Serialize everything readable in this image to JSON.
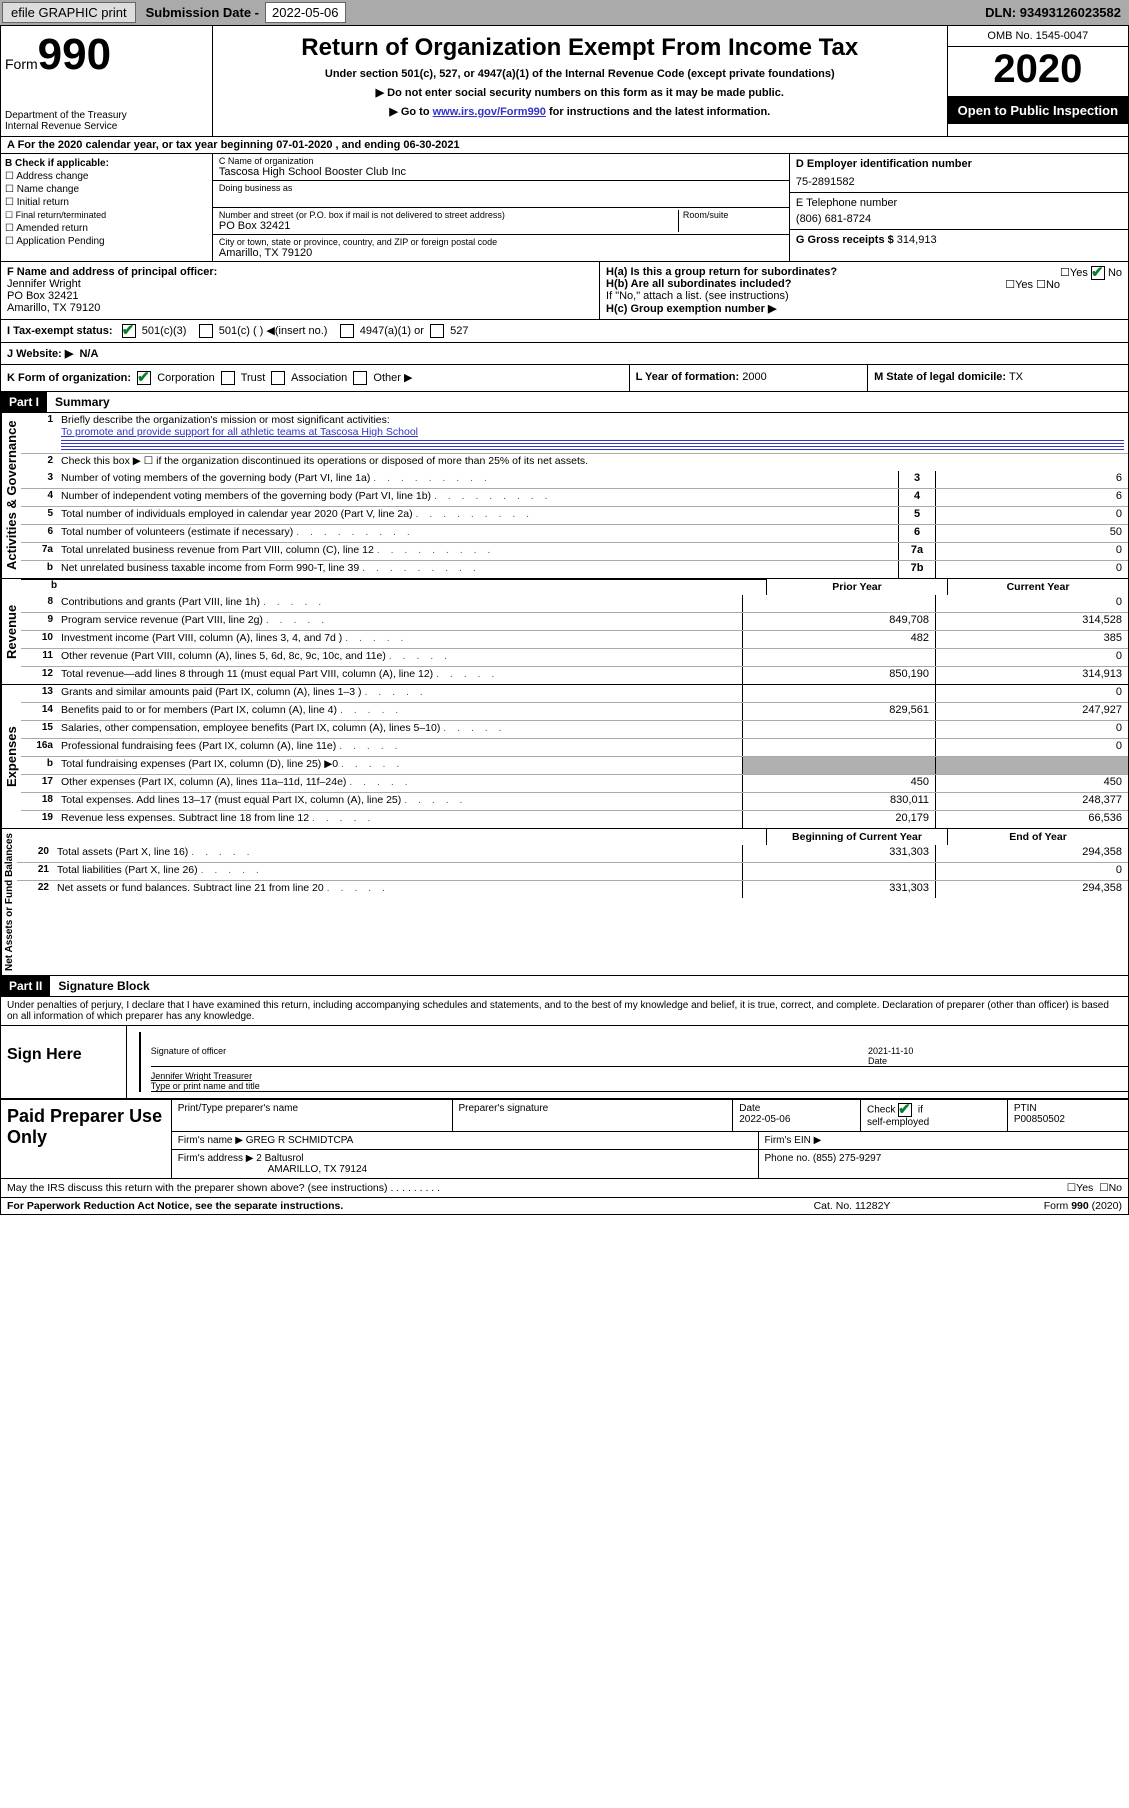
{
  "topbar": {
    "efile": "efile GRAPHIC print",
    "sub_label": "Submission Date -",
    "sub_date": "2022-05-06",
    "dln_label": "DLN:",
    "dln": "93493126023582"
  },
  "header": {
    "form_word": "Form",
    "form_num": "990",
    "dept1": "Department of the Treasury",
    "dept2": "Internal Revenue Service",
    "title": "Return of Organization Exempt From Income Tax",
    "sub1": "Under section 501(c), 527, or 4947(a)(1) of the Internal Revenue Code (except private foundations)",
    "sub2": "▶ Do not enter social security numbers on this form as it may be made public.",
    "sub3_pre": "▶ Go to ",
    "sub3_link": "www.irs.gov/Form990",
    "sub3_post": " for instructions and the latest information.",
    "omb": "OMB No. 1545-0047",
    "year": "2020",
    "open": "Open to Public Inspection"
  },
  "rowA": "A   For the 2020 calendar year, or tax year beginning 07-01-2020     , and ending 06-30-2021",
  "blockB": {
    "hdr": "B Check if applicable:",
    "items": [
      "Address change",
      "Name change",
      "Initial return",
      "Final return/terminated",
      "Amended return",
      "Application Pending"
    ]
  },
  "blockC": {
    "name_lbl": "C Name of organization",
    "name": "Tascosa High School Booster Club Inc",
    "dba_lbl": "Doing business as",
    "dba": "",
    "addr_lbl": "Number and street (or P.O. box if mail is not delivered to street address)",
    "room_lbl": "Room/suite",
    "addr": "PO Box 32421",
    "city_lbl": "City or town, state or province, country, and ZIP or foreign postal code",
    "city": "Amarillo, TX  79120"
  },
  "blockD": {
    "ein_lbl": "D Employer identification number",
    "ein": "75-2891582",
    "tel_lbl": "E Telephone number",
    "tel": "(806) 681-8724",
    "gross_lbl": "G Gross receipts $",
    "gross": "314,913"
  },
  "blockF": {
    "lbl": "F  Name and address of principal officer:",
    "name": "Jennifer Wright",
    "addr1": "PO Box 32421",
    "addr2": "Amarillo, TX  79120"
  },
  "blockH": {
    "ha": "H(a)  Is this a group return for subordinates?",
    "hb": "H(b)  Are all subordinates included?",
    "hb_note": "If \"No,\" attach a list. (see instructions)",
    "hc": "H(c)  Group exemption number ▶",
    "yes": "Yes",
    "no": "No"
  },
  "tax": {
    "lbl": "I   Tax-exempt status:",
    "o1": "501(c)(3)",
    "o2": "501(c) (  ) ◀(insert no.)",
    "o3": "4947(a)(1) or",
    "o4": "527"
  },
  "web": {
    "lbl": "J   Website: ▶",
    "val": "N/A"
  },
  "rowK": {
    "lbl": "K Form of organization:",
    "o1": "Corporation",
    "o2": "Trust",
    "o3": "Association",
    "o4": "Other ▶",
    "L_lbl": "L Year of formation:",
    "L_val": "2000",
    "M_lbl": "M State of legal domicile:",
    "M_val": "TX"
  },
  "parts": {
    "p1": "Part I",
    "p1t": "Summary",
    "p2": "Part II",
    "p2t": "Signature Block"
  },
  "summary": {
    "q1": "Briefly describe the organization's mission or most significant activities:",
    "mission": "To promote and provide support for all athletic teams at Tascosa High School",
    "q2": "Check this box ▶ ☐  if the organization discontinued its operations or disposed of more than 25% of its net assets.",
    "lines_top": [
      {
        "n": "3",
        "t": "Number of voting members of the governing body (Part VI, line 1a)",
        "box": "3",
        "v": "6"
      },
      {
        "n": "4",
        "t": "Number of independent voting members of the governing body (Part VI, line 1b)",
        "box": "4",
        "v": "6"
      },
      {
        "n": "5",
        "t": "Total number of individuals employed in calendar year 2020 (Part V, line 2a)",
        "box": "5",
        "v": "0"
      },
      {
        "n": "6",
        "t": "Total number of volunteers (estimate if necessary)",
        "box": "6",
        "v": "50"
      },
      {
        "n": "7a",
        "t": "Total unrelated business revenue from Part VIII, column (C), line 12",
        "box": "7a",
        "v": "0"
      },
      {
        "n": "b",
        "t": "Net unrelated business taxable income from Form 990-T, line 39",
        "box": "7b",
        "v": "0"
      }
    ],
    "col_prior": "Prior Year",
    "col_curr": "Current Year",
    "revenue": [
      {
        "n": "8",
        "t": "Contributions and grants (Part VIII, line 1h)",
        "p": "",
        "c": "0"
      },
      {
        "n": "9",
        "t": "Program service revenue (Part VIII, line 2g)",
        "p": "849,708",
        "c": "314,528"
      },
      {
        "n": "10",
        "t": "Investment income (Part VIII, column (A), lines 3, 4, and 7d )",
        "p": "482",
        "c": "385"
      },
      {
        "n": "11",
        "t": "Other revenue (Part VIII, column (A), lines 5, 6d, 8c, 9c, 10c, and 11e)",
        "p": "",
        "c": "0"
      },
      {
        "n": "12",
        "t": "Total revenue—add lines 8 through 11 (must equal Part VIII, column (A), line 12)",
        "p": "850,190",
        "c": "314,913"
      }
    ],
    "expenses": [
      {
        "n": "13",
        "t": "Grants and similar amounts paid (Part IX, column (A), lines 1–3 )",
        "p": "",
        "c": "0"
      },
      {
        "n": "14",
        "t": "Benefits paid to or for members (Part IX, column (A), line 4)",
        "p": "829,561",
        "c": "247,927"
      },
      {
        "n": "15",
        "t": "Salaries, other compensation, employee benefits (Part IX, column (A), lines 5–10)",
        "p": "",
        "c": "0"
      },
      {
        "n": "16a",
        "t": "Professional fundraising fees (Part IX, column (A), line 11e)",
        "p": "",
        "c": "0"
      },
      {
        "n": "b",
        "t": "Total fundraising expenses (Part IX, column (D), line 25) ▶0",
        "p": "SHADE",
        "c": "SHADE"
      },
      {
        "n": "17",
        "t": "Other expenses (Part IX, column (A), lines 11a–11d, 11f–24e)",
        "p": "450",
        "c": "450"
      },
      {
        "n": "18",
        "t": "Total expenses. Add lines 13–17 (must equal Part IX, column (A), line 25)",
        "p": "830,011",
        "c": "248,377"
      },
      {
        "n": "19",
        "t": "Revenue less expenses. Subtract line 18 from line 12",
        "p": "20,179",
        "c": "66,536"
      }
    ],
    "col_begin": "Beginning of Current Year",
    "col_end": "End of Year",
    "netassets": [
      {
        "n": "20",
        "t": "Total assets (Part X, line 16)",
        "p": "331,303",
        "c": "294,358"
      },
      {
        "n": "21",
        "t": "Total liabilities (Part X, line 26)",
        "p": "",
        "c": "0"
      },
      {
        "n": "22",
        "t": "Net assets or fund balances. Subtract line 21 from line 20",
        "p": "331,303",
        "c": "294,358"
      }
    ]
  },
  "vlabels": {
    "gov": "Activities & Governance",
    "rev": "Revenue",
    "exp": "Expenses",
    "net": "Net Assets or Fund Balances"
  },
  "penalties": "Under penalties of perjury, I declare that I have examined this return, including accompanying schedules and statements, and to the best of my knowledge and belief, it is true, correct, and complete. Declaration of preparer (other than officer) is based on all information of which preparer has any knowledge.",
  "sign": {
    "hdr": "Sign Here",
    "sig_lbl": "Signature of officer",
    "date_lbl": "Date",
    "date": "2021-11-10",
    "name": "Jennifer Wright Treasurer",
    "name_lbl": "Type or print name and title"
  },
  "paid": {
    "hdr": "Paid Preparer Use Only",
    "r1": {
      "c1_lbl": "Print/Type preparer's name",
      "c1": "",
      "c2_lbl": "Preparer's signature",
      "c2": "",
      "c3_lbl": "Date",
      "c3": "2022-05-06",
      "c4_lbl": "Check ☑ if self-employed",
      "c5_lbl": "PTIN",
      "c5": "P00850502"
    },
    "r2": {
      "lbl": "Firm's name    ▶",
      "val": "GREG R SCHMIDTCPA",
      "ein_lbl": "Firm's EIN ▶",
      "ein": ""
    },
    "r3": {
      "lbl": "Firm's address ▶",
      "val1": "2 Baltusrol",
      "val2": "AMARILLO, TX  79124",
      "ph_lbl": "Phone no.",
      "ph": "(855) 275-9297"
    }
  },
  "discuss": {
    "q": "May the IRS discuss this return with the preparer shown above? (see instructions)",
    "yes": "Yes",
    "no": "No"
  },
  "footer": {
    "l": "For Paperwork Reduction Act Notice, see the separate instructions.",
    "c": "Cat. No. 11282Y",
    "r": "Form 990 (2020)"
  }
}
